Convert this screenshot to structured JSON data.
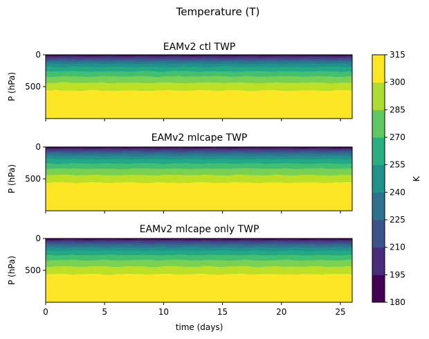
{
  "figure_title": "Temperature (T)",
  "chart_data": [
    {
      "type": "heatmap",
      "title": "EAMv2 ctl TWP",
      "xlabel": "",
      "ylabel": "P (hPa)",
      "xlim": [
        0,
        26
      ],
      "ylim": [
        1000,
        0
      ],
      "x_ticks": [
        "0",
        "5",
        "10",
        "15",
        "20",
        "25"
      ],
      "x_ticklabels_visible": false,
      "y_ticks": [
        "0",
        "500"
      ],
      "contour_boundaries_hPa": [
        15,
        40,
        70,
        100,
        140,
        190,
        260,
        340,
        440,
        560,
        730,
        950,
        1000
      ]
    },
    {
      "type": "heatmap",
      "title": "EAMv2 mlcape TWP",
      "xlabel": "",
      "ylabel": "P (hPa)",
      "xlim": [
        0,
        26
      ],
      "ylim": [
        1000,
        0
      ],
      "x_ticks": [
        "0",
        "5",
        "10",
        "15",
        "20",
        "25"
      ],
      "x_ticklabels_visible": false,
      "y_ticks": [
        "0",
        "500"
      ],
      "contour_boundaries_hPa": [
        15,
        40,
        70,
        100,
        140,
        190,
        260,
        340,
        440,
        560,
        700,
        960,
        1000
      ]
    },
    {
      "type": "heatmap",
      "title": "EAMv2 mlcape only TWP",
      "xlabel": "time (days)",
      "ylabel": "P (hPa)",
      "xlim": [
        0,
        26
      ],
      "ylim": [
        1000,
        0
      ],
      "x_ticks": [
        "0",
        "5",
        "10",
        "15",
        "20",
        "25"
      ],
      "x_ticklabels_visible": true,
      "y_ticks": [
        "0",
        "500"
      ],
      "contour_boundaries_hPa": [
        15,
        40,
        70,
        100,
        140,
        190,
        260,
        340,
        440,
        560,
        710,
        960,
        1000
      ]
    }
  ],
  "colorbar": {
    "label": "K",
    "ticks": [
      "180",
      "195",
      "210",
      "225",
      "240",
      "255",
      "270",
      "285",
      "300",
      "315"
    ],
    "colors": [
      "#440154",
      "#472d7b",
      "#3b528b",
      "#2c728e",
      "#21918c",
      "#28ae80",
      "#5ec962",
      "#addc30",
      "#fde725"
    ],
    "panel_colors": [
      "#440154",
      "#482475",
      "#414487",
      "#355f8d",
      "#2a788e",
      "#21918c",
      "#22a884",
      "#44bf70",
      "#7ad151",
      "#bddf26",
      "#fde725"
    ]
  }
}
